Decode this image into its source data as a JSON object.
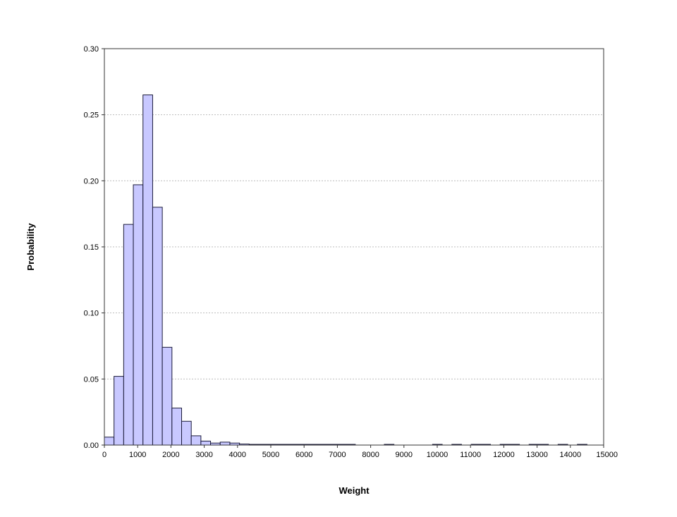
{
  "chart_data": {
    "type": "bar",
    "xlabel": "Weight",
    "ylabel": "Probability",
    "xlim": [
      0,
      15000
    ],
    "ylim": [
      0,
      0.3
    ],
    "xticks": [
      "0",
      "1000",
      "2000",
      "3000",
      "4000",
      "5000",
      "6000",
      "7000",
      "8000",
      "9000",
      "10000",
      "11000",
      "12000",
      "13000",
      "14000",
      "15000"
    ],
    "yticks": [
      "0.00",
      "0.05",
      "0.10",
      "0.15",
      "0.20",
      "0.25",
      "0.30"
    ],
    "grid": true,
    "bar_color": "#c8c8ff",
    "bar_edge_color": "#1a1a3a",
    "bin_width": 290,
    "bins": [
      {
        "x0": 0,
        "value": 0.006
      },
      {
        "x0": 290,
        "value": 0.052
      },
      {
        "x0": 580,
        "value": 0.167
      },
      {
        "x0": 870,
        "value": 0.197
      },
      {
        "x0": 1160,
        "value": 0.265
      },
      {
        "x0": 1450,
        "value": 0.18
      },
      {
        "x0": 1740,
        "value": 0.074
      },
      {
        "x0": 2030,
        "value": 0.028
      },
      {
        "x0": 2320,
        "value": 0.018
      },
      {
        "x0": 2610,
        "value": 0.007
      },
      {
        "x0": 2900,
        "value": 0.003
      },
      {
        "x0": 3190,
        "value": 0.0015
      },
      {
        "x0": 3480,
        "value": 0.0022
      },
      {
        "x0": 3770,
        "value": 0.0015
      },
      {
        "x0": 4060,
        "value": 0.0008
      },
      {
        "x0": 4350,
        "value": 0.0004
      },
      {
        "x0": 4640,
        "value": 0.0003
      },
      {
        "x0": 4930,
        "value": 0.0003
      },
      {
        "x0": 5220,
        "value": 0.0002
      },
      {
        "x0": 5510,
        "value": 0.0002
      },
      {
        "x0": 5800,
        "value": 0.0002
      },
      {
        "x0": 6090,
        "value": 0.0002
      },
      {
        "x0": 6380,
        "value": 0.0001
      },
      {
        "x0": 6670,
        "value": 0.0001
      },
      {
        "x0": 6960,
        "value": 0.0001
      },
      {
        "x0": 7250,
        "value": 0.0001
      },
      {
        "x0": 8410,
        "value": 0.0001
      },
      {
        "x0": 9860,
        "value": 0.0001
      },
      {
        "x0": 10440,
        "value": 0.0001
      },
      {
        "x0": 11020,
        "value": 0.0001
      },
      {
        "x0": 11310,
        "value": 0.0001
      },
      {
        "x0": 11890,
        "value": 0.0001
      },
      {
        "x0": 12180,
        "value": 0.0001
      },
      {
        "x0": 12760,
        "value": 0.0001
      },
      {
        "x0": 13050,
        "value": 0.0001
      },
      {
        "x0": 13630,
        "value": 0.0001
      },
      {
        "x0": 14210,
        "value": 0.0001
      }
    ]
  }
}
